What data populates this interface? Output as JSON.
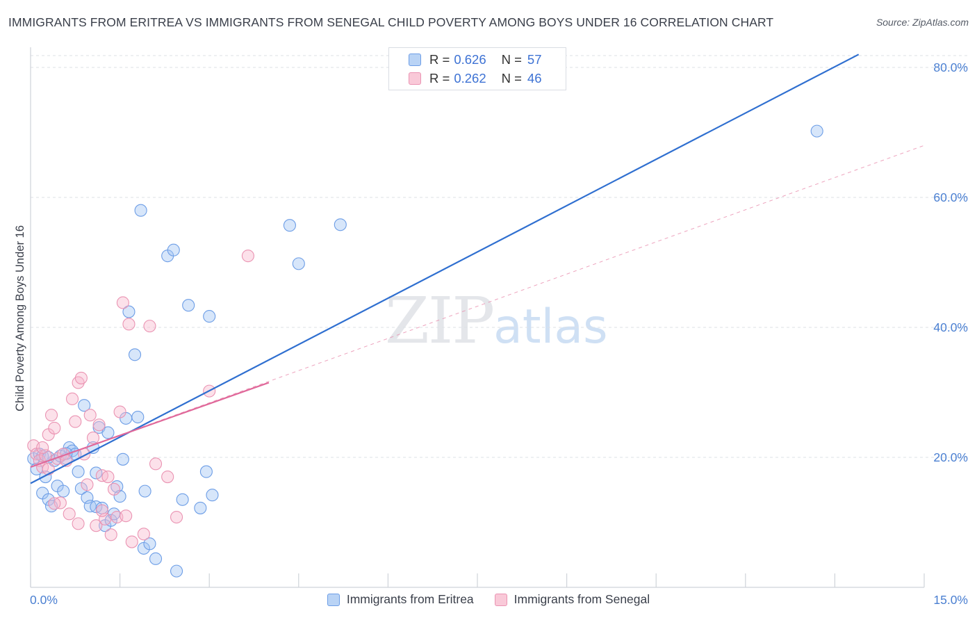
{
  "title": "IMMIGRANTS FROM ERITREA VS IMMIGRANTS FROM SENEGAL CHILD POVERTY AMONG BOYS UNDER 16 CORRELATION CHART",
  "source": "Source: ZipAtlas.com",
  "watermark": {
    "zip": "ZIP",
    "atlas": "atlas"
  },
  "stats": [
    {
      "r_label": "R = ",
      "r_value": "0.626",
      "n_label": "N = ",
      "n_value": "57",
      "color": "#6c9de6"
    },
    {
      "r_label": "R = ",
      "r_value": "0.262",
      "n_label": "N = ",
      "n_value": "46",
      "color": "#ea93b2"
    }
  ],
  "legend": [
    {
      "label": "Immigrants from Eritrea",
      "color": "#6c9de6"
    },
    {
      "label": "Immigrants from Senegal",
      "color": "#ea93b2"
    }
  ],
  "chart_data": {
    "type": "scatter",
    "title": "IMMIGRANTS FROM ERITREA VS IMMIGRANTS FROM SENEGAL CHILD POVERTY AMONG BOYS UNDER 16 CORRELATION CHART",
    "xlabel": "",
    "ylabel": "Child Poverty Among Boys Under 16",
    "xlim": [
      0,
      15
    ],
    "ylim": [
      0,
      80
    ],
    "x_tick_labels": [
      {
        "value": 0,
        "label": "0.0%"
      },
      {
        "value": 15,
        "label": "15.0%"
      }
    ],
    "y_tick_labels": [
      {
        "value": 20,
        "label": "20.0%"
      },
      {
        "value": 40,
        "label": "40.0%"
      },
      {
        "value": 60,
        "label": "60.0%"
      },
      {
        "value": 80,
        "label": "80.0%"
      }
    ],
    "grid": true,
    "legend_position": "bottom",
    "series": [
      {
        "name": "Immigrants from Eritrea",
        "color": "#6c9de6",
        "trend": {
          "x": [
            0,
            13.9
          ],
          "y": [
            16.0,
            82.0
          ],
          "style": "solid"
        },
        "points": [
          [
            0.05,
            19.8
          ],
          [
            0.1,
            18.2
          ],
          [
            0.15,
            20.5
          ],
          [
            0.2,
            14.5
          ],
          [
            0.25,
            17.0
          ],
          [
            0.3,
            13.5
          ],
          [
            0.35,
            12.5
          ],
          [
            0.4,
            19.5
          ],
          [
            0.45,
            15.6
          ],
          [
            0.5,
            20.2
          ],
          [
            0.55,
            14.8
          ],
          [
            0.6,
            19.8
          ],
          [
            0.65,
            21.5
          ],
          [
            0.7,
            21.0
          ],
          [
            0.75,
            20.5
          ],
          [
            0.8,
            17.8
          ],
          [
            0.85,
            15.2
          ],
          [
            0.9,
            28.0
          ],
          [
            0.95,
            13.8
          ],
          [
            1.0,
            12.5
          ],
          [
            1.05,
            21.5
          ],
          [
            1.1,
            12.4
          ],
          [
            1.15,
            24.6
          ],
          [
            1.2,
            12.2
          ],
          [
            1.25,
            9.5
          ],
          [
            1.3,
            23.8
          ],
          [
            1.35,
            10.3
          ],
          [
            1.4,
            11.3
          ],
          [
            1.45,
            15.5
          ],
          [
            1.5,
            14.0
          ],
          [
            1.55,
            19.7
          ],
          [
            1.6,
            26.0
          ],
          [
            1.65,
            42.4
          ],
          [
            1.75,
            35.8
          ],
          [
            1.8,
            26.2
          ],
          [
            1.85,
            58.0
          ],
          [
            1.9,
            6.0
          ],
          [
            2.0,
            6.7
          ],
          [
            2.1,
            4.4
          ],
          [
            1.92,
            14.8
          ],
          [
            2.3,
            51.0
          ],
          [
            2.4,
            51.9
          ],
          [
            2.45,
            2.5
          ],
          [
            2.55,
            13.5
          ],
          [
            2.65,
            43.4
          ],
          [
            2.85,
            12.2
          ],
          [
            2.95,
            17.8
          ],
          [
            3.0,
            41.7
          ],
          [
            3.05,
            14.2
          ],
          [
            4.35,
            55.7
          ],
          [
            4.5,
            49.8
          ],
          [
            5.2,
            55.8
          ],
          [
            13.2,
            70.2
          ],
          [
            0.2,
            20.2
          ],
          [
            0.3,
            20.0
          ],
          [
            1.1,
            17.6
          ],
          [
            0.6,
            20.6
          ]
        ]
      },
      {
        "name": "Immigrants from Senegal",
        "color": "#ea93b2",
        "trend": {
          "x": [
            0,
            4.0
          ],
          "y": [
            18.5,
            31.5
          ],
          "style": "solid"
        },
        "trend_extended": {
          "x": [
            0,
            15
          ],
          "y": [
            18.5,
            68.0
          ],
          "style": "dashed"
        },
        "points": [
          [
            0.05,
            21.8
          ],
          [
            0.1,
            20.5
          ],
          [
            0.15,
            19.5
          ],
          [
            0.2,
            18.5
          ],
          [
            0.25,
            20.3
          ],
          [
            0.3,
            23.5
          ],
          [
            0.35,
            26.5
          ],
          [
            0.4,
            24.5
          ],
          [
            0.45,
            19.8
          ],
          [
            0.5,
            13.0
          ],
          [
            0.55,
            20.5
          ],
          [
            0.6,
            19.5
          ],
          [
            0.65,
            11.3
          ],
          [
            0.7,
            29.0
          ],
          [
            0.75,
            25.5
          ],
          [
            0.8,
            31.5
          ],
          [
            0.85,
            32.2
          ],
          [
            0.9,
            20.5
          ],
          [
            0.95,
            15.8
          ],
          [
            1.0,
            26.5
          ],
          [
            1.05,
            23.0
          ],
          [
            1.1,
            9.5
          ],
          [
            1.15,
            25.0
          ],
          [
            1.2,
            17.2
          ],
          [
            1.25,
            10.5
          ],
          [
            1.3,
            17.0
          ],
          [
            1.35,
            8.1
          ],
          [
            1.4,
            15.1
          ],
          [
            1.45,
            10.8
          ],
          [
            1.5,
            27.0
          ],
          [
            1.55,
            43.8
          ],
          [
            1.6,
            11.0
          ],
          [
            1.65,
            40.5
          ],
          [
            1.7,
            7.0
          ],
          [
            1.9,
            8.2
          ],
          [
            2.0,
            40.2
          ],
          [
            2.1,
            19.0
          ],
          [
            2.3,
            17.0
          ],
          [
            2.45,
            10.8
          ],
          [
            3.0,
            30.2
          ],
          [
            3.65,
            51.0
          ],
          [
            0.2,
            21.5
          ],
          [
            0.4,
            12.9
          ],
          [
            0.8,
            9.8
          ],
          [
            1.2,
            11.8
          ],
          [
            0.3,
            18.2
          ]
        ]
      }
    ]
  }
}
